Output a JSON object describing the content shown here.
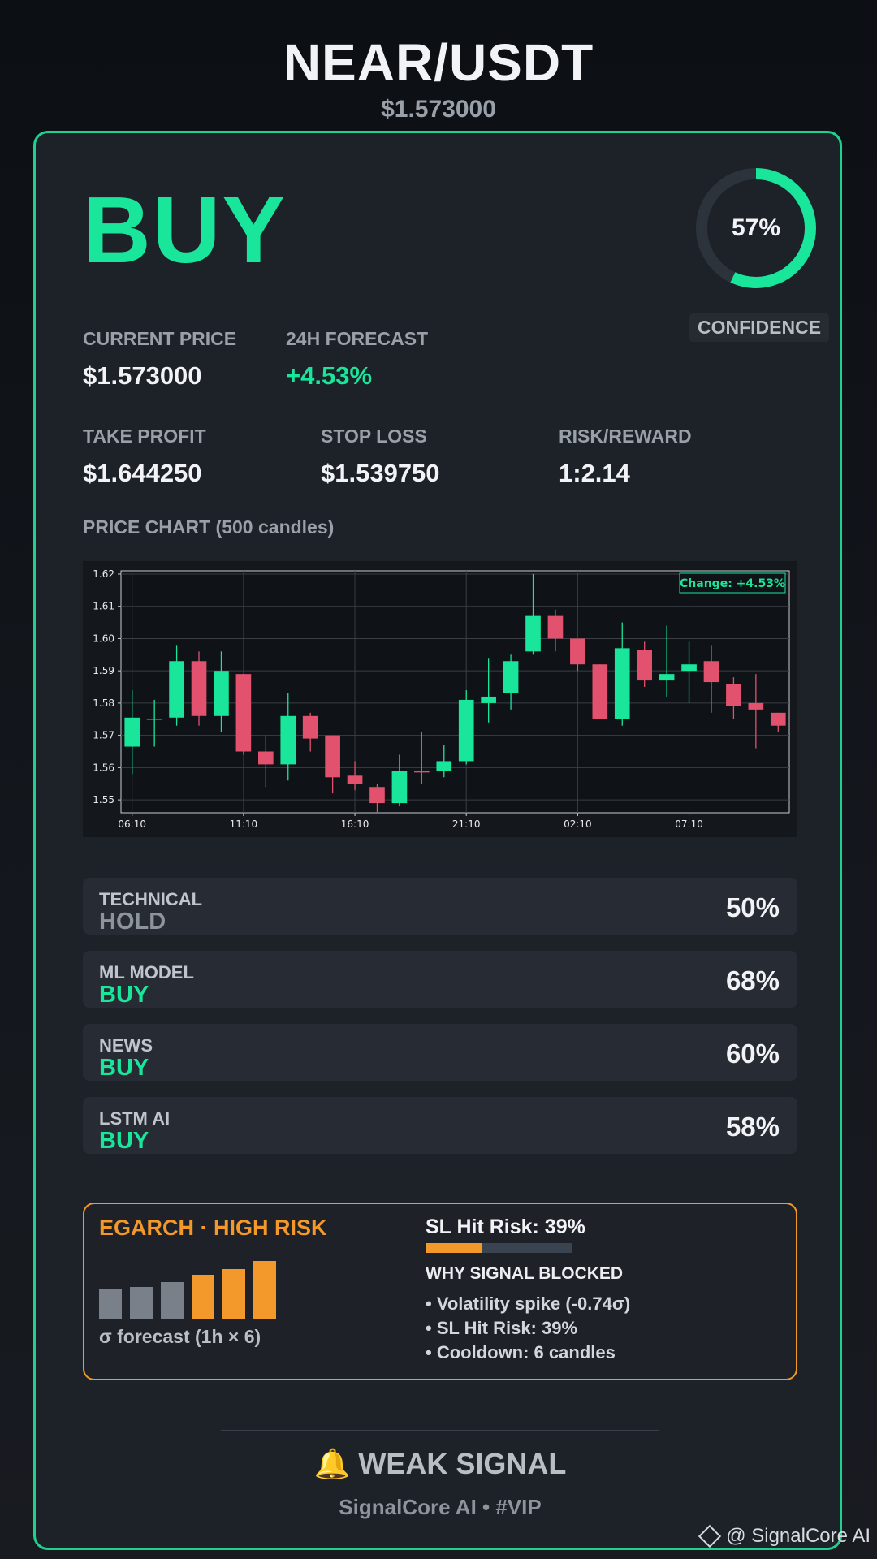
{
  "header": {
    "pair": "NEAR/USDT",
    "price": "$1.573000"
  },
  "signal": {
    "action": "BUY",
    "confidence_text": "57%",
    "confidence_value": 0.57,
    "confidence_label": "CONFIDENCE"
  },
  "metrics": {
    "current_price": {
      "label": "CURRENT PRICE",
      "value": "$1.573000"
    },
    "forecast": {
      "label": "24H FORECAST",
      "value": "+4.53%"
    },
    "take_profit": {
      "label": "TAKE PROFIT",
      "value": "$1.644250"
    },
    "stop_loss": {
      "label": "STOP LOSS",
      "value": "$1.539750"
    },
    "risk_reward": {
      "label": "RISK/REWARD",
      "value": "1:2.14"
    }
  },
  "chart_label": "PRICE CHART (500 candles)",
  "chart_data": {
    "type": "candlestick",
    "badge": "Change: +4.53%",
    "ylim": [
      1.546,
      1.621
    ],
    "yticks": [
      "1.55",
      "1.56",
      "1.57",
      "1.58",
      "1.59",
      "1.60",
      "1.61",
      "1.62"
    ],
    "xticks": [
      {
        "label": "06:10",
        "index": 0
      },
      {
        "label": "11:10",
        "index": 5
      },
      {
        "label": "16:10",
        "index": 10
      },
      {
        "label": "21:10",
        "index": 15
      },
      {
        "label": "02:10",
        "index": 20
      },
      {
        "label": "07:10",
        "index": 25
      }
    ],
    "candles": [
      {
        "o": 1.5665,
        "h": 1.584,
        "l": 1.558,
        "c": 1.5755
      },
      {
        "o": 1.575,
        "h": 1.581,
        "l": 1.5665,
        "c": 1.5752
      },
      {
        "o": 1.5755,
        "h": 1.598,
        "l": 1.573,
        "c": 1.593
      },
      {
        "o": 1.593,
        "h": 1.596,
        "l": 1.573,
        "c": 1.576
      },
      {
        "o": 1.576,
        "h": 1.596,
        "l": 1.571,
        "c": 1.59
      },
      {
        "o": 1.589,
        "h": 1.589,
        "l": 1.564,
        "c": 1.565
      },
      {
        "o": 1.565,
        "h": 1.57,
        "l": 1.554,
        "c": 1.561
      },
      {
        "o": 1.561,
        "h": 1.583,
        "l": 1.556,
        "c": 1.576
      },
      {
        "o": 1.576,
        "h": 1.577,
        "l": 1.565,
        "c": 1.569
      },
      {
        "o": 1.57,
        "h": 1.57,
        "l": 1.552,
        "c": 1.557
      },
      {
        "o": 1.5575,
        "h": 1.562,
        "l": 1.553,
        "c": 1.555
      },
      {
        "o": 1.554,
        "h": 1.555,
        "l": 1.546,
        "c": 1.549
      },
      {
        "o": 1.549,
        "h": 1.564,
        "l": 1.548,
        "c": 1.559
      },
      {
        "o": 1.559,
        "h": 1.571,
        "l": 1.555,
        "c": 1.5585
      },
      {
        "o": 1.559,
        "h": 1.567,
        "l": 1.557,
        "c": 1.562
      },
      {
        "o": 1.562,
        "h": 1.584,
        "l": 1.561,
        "c": 1.581
      },
      {
        "o": 1.58,
        "h": 1.594,
        "l": 1.574,
        "c": 1.582
      },
      {
        "o": 1.583,
        "h": 1.595,
        "l": 1.578,
        "c": 1.593
      },
      {
        "o": 1.596,
        "h": 1.62,
        "l": 1.595,
        "c": 1.607
      },
      {
        "o": 1.607,
        "h": 1.609,
        "l": 1.596,
        "c": 1.6
      },
      {
        "o": 1.6,
        "h": 1.6,
        "l": 1.59,
        "c": 1.592
      },
      {
        "o": 1.592,
        "h": 1.592,
        "l": 1.575,
        "c": 1.575
      },
      {
        "o": 1.575,
        "h": 1.605,
        "l": 1.573,
        "c": 1.597
      },
      {
        "o": 1.5965,
        "h": 1.599,
        "l": 1.585,
        "c": 1.587
      },
      {
        "o": 1.587,
        "h": 1.604,
        "l": 1.582,
        "c": 1.589
      },
      {
        "o": 1.59,
        "h": 1.599,
        "l": 1.58,
        "c": 1.592
      },
      {
        "o": 1.593,
        "h": 1.598,
        "l": 1.577,
        "c": 1.5865
      },
      {
        "o": 1.586,
        "h": 1.588,
        "l": 1.575,
        "c": 1.579
      },
      {
        "o": 1.58,
        "h": 1.589,
        "l": 1.566,
        "c": 1.578
      },
      {
        "o": 1.577,
        "h": 1.577,
        "l": 1.571,
        "c": 1.573
      }
    ]
  },
  "components": [
    {
      "name": "TECHNICAL",
      "signal": "HOLD",
      "percent": "50%",
      "color": "#8e949c"
    },
    {
      "name": "ML MODEL",
      "signal": "BUY",
      "percent": "68%",
      "color": "#19e69a"
    },
    {
      "name": "NEWS",
      "signal": "BUY",
      "percent": "60%",
      "color": "#19e69a"
    },
    {
      "name": "LSTM AI",
      "signal": "BUY",
      "percent": "58%",
      "color": "#19e69a"
    }
  ],
  "risk": {
    "title": "EGARCH · HIGH RISK",
    "sigma_label": "σ forecast (1h × 6)",
    "sigma_bars": [
      {
        "level": 0.52,
        "color": "#7a808a"
      },
      {
        "level": 0.56,
        "color": "#7a808a"
      },
      {
        "level": 0.64,
        "color": "#7a808a"
      },
      {
        "level": 0.76,
        "color": "#f3992b"
      },
      {
        "level": 0.86,
        "color": "#f3992b"
      },
      {
        "level": 1.0,
        "color": "#f3992b"
      }
    ],
    "sl_hit_risk_label": "SL Hit Risk: 39%",
    "sl_hit_risk_value": 0.39,
    "why_title": "WHY SIGNAL BLOCKED",
    "reasons": [
      "• Volatility spike (-0.74σ)",
      "• SL Hit Risk: 39%",
      "• Cooldown: 6 candles"
    ]
  },
  "footer": {
    "strength": "🔔 WEAK SIGNAL",
    "brand": "SignalCore AI • #VIP"
  },
  "watermark": "@ SignalCore AI",
  "colors": {
    "accent": "#19e69a",
    "down": "#e2516e",
    "warning": "#f3992b"
  }
}
